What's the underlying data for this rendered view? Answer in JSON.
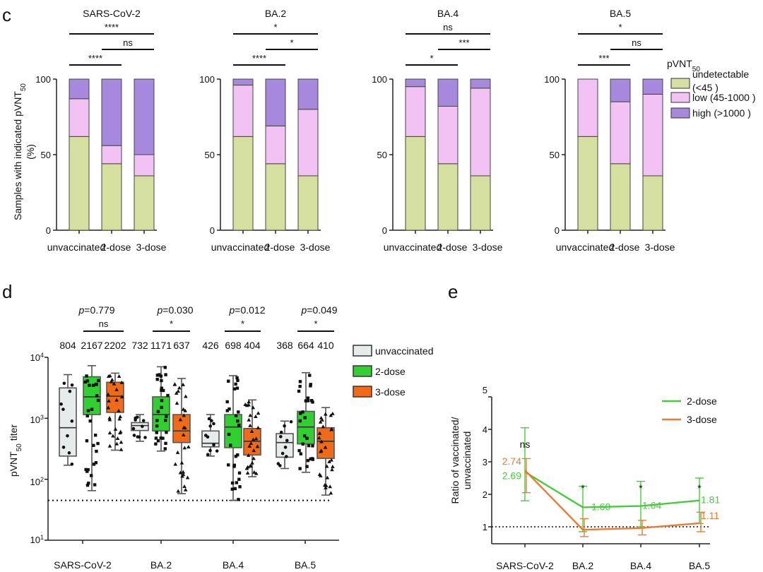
{
  "panels": {
    "c": {
      "letter": "c",
      "ylabel": "Samples with indicated pVNT",
      "ylabel_sub": "50",
      "ylabel2": "(%)",
      "yticks": [
        "0",
        "50",
        "100"
      ],
      "legend_title": "pVNT",
      "legend_title_sub": "50",
      "legend": [
        {
          "label": "undetectable",
          "label2": "(<45 )",
          "color": "#d5df9f"
        },
        {
          "label": "low (45-1000 )",
          "color": "#f3c2f4"
        },
        {
          "label": "high (>1000 )",
          "color": "#a688dd"
        }
      ]
    },
    "d": {
      "letter": "d",
      "ylabel": "pVNT",
      "ylabel_sub": "50",
      "ylabel_tail": " titer",
      "yticks": [
        {
          "base": "10",
          "exp": "1"
        },
        {
          "base": "10",
          "exp": "2"
        },
        {
          "base": "10",
          "exp": "3"
        },
        {
          "base": "10",
          "exp": "4"
        }
      ],
      "legend": [
        {
          "label": "unvaccinated",
          "color": "#e8ebeb"
        },
        {
          "label": "2-dose",
          "color": "#2fd02f"
        },
        {
          "label": "3-dose",
          "color": "#f06a18"
        }
      ]
    },
    "e": {
      "letter": "e",
      "ylabel": "Ratio of vaccinated/",
      "ylabel2": "unvaccinated",
      "yticks": [
        "1",
        "2",
        "3",
        "4",
        "5"
      ],
      "xticks": [
        "SARS-CoV-2",
        "BA.2",
        "BA.4",
        "BA.5"
      ]
    }
  },
  "chart_data": [
    {
      "type": "bar",
      "stacked": true,
      "panel": "c",
      "ylim": [
        0,
        100
      ],
      "group_labels": [
        "unvaccinated",
        "2-dose",
        "3-dose"
      ],
      "series_colors": [
        "#d5df9f",
        "#f3c2f4",
        "#a688dd"
      ],
      "groups": [
        {
          "title": "SARS-CoV-2",
          "stacks": [
            [
              62,
              25,
              13
            ],
            [
              44,
              12,
              44
            ],
            [
              36,
              14,
              50
            ]
          ],
          "sig": [
            {
              "from": 0,
              "to": 2,
              "label": "****",
              "row": 2
            },
            {
              "from": 1,
              "to": 2,
              "label": "ns",
              "row": 1
            },
            {
              "from": 0,
              "to": 1,
              "label": "****",
              "row": 0
            }
          ]
        },
        {
          "title": "BA.2",
          "stacks": [
            [
              62,
              34,
              4
            ],
            [
              44,
              25,
              31
            ],
            [
              36,
              44,
              20
            ]
          ],
          "sig": [
            {
              "from": 0,
              "to": 2,
              "label": "*",
              "row": 2
            },
            {
              "from": 1,
              "to": 2,
              "label": "*",
              "row": 1
            },
            {
              "from": 0,
              "to": 1,
              "label": "****",
              "row": 0
            }
          ]
        },
        {
          "title": "BA.4",
          "stacks": [
            [
              62,
              33,
              5
            ],
            [
              44,
              38,
              18
            ],
            [
              36,
              58,
              6
            ]
          ],
          "sig": [
            {
              "from": 0,
              "to": 2,
              "label": "ns",
              "row": 2
            },
            {
              "from": 1,
              "to": 2,
              "label": "***",
              "row": 1
            },
            {
              "from": 0,
              "to": 1,
              "label": "*",
              "row": 0
            }
          ]
        },
        {
          "title": "BA.5",
          "stacks": [
            [
              62,
              38,
              0
            ],
            [
              44,
              41,
              15
            ],
            [
              36,
              54,
              10
            ]
          ],
          "sig": [
            {
              "from": 0,
              "to": 2,
              "label": "*",
              "row": 2
            },
            {
              "from": 1,
              "to": 2,
              "label": "ns",
              "row": 1
            },
            {
              "from": 0,
              "to": 1,
              "label": "***",
              "row": 0
            }
          ]
        }
      ]
    },
    {
      "type": "box",
      "panel": "d",
      "yscale": "log",
      "ylim": [
        10,
        10000
      ],
      "threshold": 45,
      "group_colors": [
        "#e8ebeb",
        "#2fd02f",
        "#f06a18"
      ],
      "groups": [
        {
          "label": "SARS-CoV-2",
          "pvalue": "0.779",
          "sig": "ns",
          "counts": [
            "804",
            "2167",
            "2202"
          ],
          "boxes": [
            {
              "min": 170,
              "q1": 240,
              "median": 700,
              "q3": 3150,
              "max": 5200
            },
            {
              "min": 65,
              "q1": 1150,
              "median": 2250,
              "q3": 4800,
              "max": 7300
            },
            {
              "min": 300,
              "q1": 1250,
              "median": 2300,
              "q3": 3900,
              "max": 5500
            }
          ]
        },
        {
          "label": "BA.2",
          "pvalue": "0.030",
          "sig": "*",
          "counts": [
            "732",
            "1171",
            "637"
          ],
          "boxes": [
            {
              "min": 420,
              "q1": 630,
              "median": 760,
              "q3": 850,
              "max": 1150
            },
            {
              "min": 290,
              "q1": 620,
              "median": 1150,
              "q3": 2250,
              "max": 7000
            },
            {
              "min": 58,
              "q1": 400,
              "median": 620,
              "q3": 1150,
              "max": 4500
            }
          ]
        },
        {
          "label": "BA.4",
          "pvalue": "0.012",
          "sig": "*",
          "counts": [
            "426",
            "698",
            "404"
          ],
          "boxes": [
            {
              "min": 240,
              "q1": 340,
              "median": 390,
              "q3": 620,
              "max": 1150
            },
            {
              "min": 45,
              "q1": 330,
              "median": 720,
              "q3": 1150,
              "max": 5000
            },
            {
              "min": 110,
              "q1": 250,
              "median": 420,
              "q3": 680,
              "max": 2000
            }
          ]
        },
        {
          "label": "BA.5",
          "pvalue": "0.049",
          "sig": "*",
          "counts": [
            "368",
            "664",
            "410"
          ],
          "boxes": [
            {
              "min": 150,
              "q1": 230,
              "median": 400,
              "q3": 560,
              "max": 900
            },
            {
              "min": 130,
              "q1": 380,
              "median": 720,
              "q3": 1300,
              "max": 5600
            },
            {
              "min": 55,
              "q1": 220,
              "median": 420,
              "q3": 700,
              "max": 1500
            }
          ]
        }
      ]
    },
    {
      "type": "line",
      "panel": "e",
      "ylim": [
        0.4,
        5
      ],
      "threshold": 1,
      "x": [
        "SARS-CoV-2",
        "BA.2",
        "BA.4",
        "BA.5"
      ],
      "sig": [
        "ns",
        "*",
        "*",
        "*"
      ],
      "series": [
        {
          "name": "2-dose",
          "color": "#44cc3a",
          "values": [
            2.69,
            1.6,
            1.64,
            1.81
          ],
          "labels": [
            "2.69",
            "1.60",
            "1.64",
            "1.81"
          ],
          "err": [
            [
              1.8,
              4.05
            ],
            [
              0.85,
              2.25
            ],
            [
              1.0,
              2.4
            ],
            [
              1.1,
              2.5
            ]
          ]
        },
        {
          "name": "3-dose",
          "color": "#ec7a33",
          "values": [
            2.74,
            0.91,
            0.96,
            1.11
          ],
          "labels": [
            "2.74",
            "",
            "",
            "1.11"
          ],
          "err": [
            [
              2.05,
              3.1
            ],
            [
              0.7,
              1.25
            ],
            [
              0.75,
              1.2
            ],
            [
              0.85,
              1.45
            ]
          ]
        }
      ]
    }
  ]
}
